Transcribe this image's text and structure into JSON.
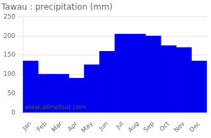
{
  "chart_data": {
    "type": "bar",
    "title": "Tawau : precipitation (mm)",
    "categories": [
      "Jan",
      "Feb",
      "Mar",
      "Apr",
      "May",
      "Jun",
      "Jul",
      "Aug",
      "Sep",
      "Oct",
      "Nov",
      "Dec"
    ],
    "values": [
      135,
      100,
      100,
      90,
      125,
      160,
      205,
      205,
      200,
      175,
      170,
      135
    ],
    "color": "#0000ee",
    "ylim": [
      0,
      250
    ],
    "yticks": [
      0,
      50,
      100,
      150,
      200,
      250
    ],
    "grid": true,
    "annotation": "www.allmetsat.com"
  }
}
